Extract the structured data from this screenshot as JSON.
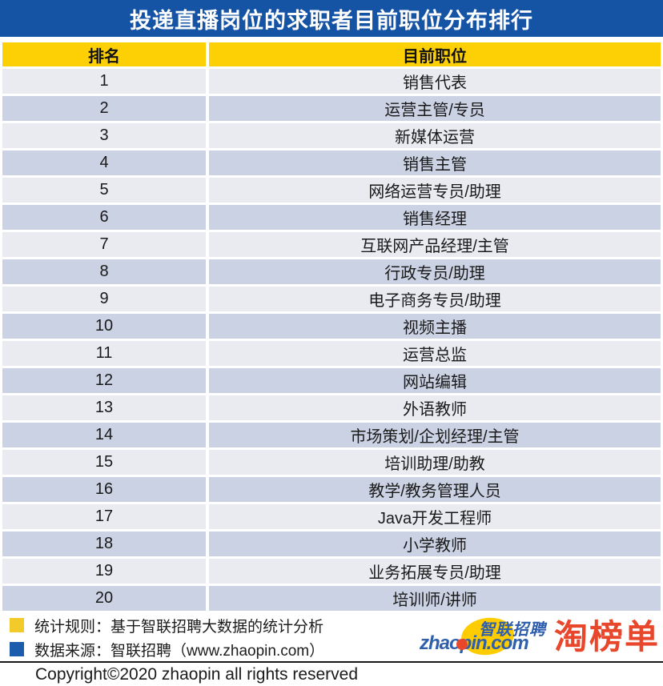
{
  "title": "投递直播岗位的求职者目前职位分布排行",
  "table": {
    "headers": [
      "排名",
      "目前职位"
    ],
    "rows": [
      {
        "rank": "1",
        "position": "销售代表"
      },
      {
        "rank": "2",
        "position": "运营主管/专员"
      },
      {
        "rank": "3",
        "position": "新媒体运营"
      },
      {
        "rank": "4",
        "position": "销售主管"
      },
      {
        "rank": "5",
        "position": "网络运营专员/助理"
      },
      {
        "rank": "6",
        "position": "销售经理"
      },
      {
        "rank": "7",
        "position": "互联网产品经理/主管"
      },
      {
        "rank": "8",
        "position": "行政专员/助理"
      },
      {
        "rank": "9",
        "position": "电子商务专员/助理"
      },
      {
        "rank": "10",
        "position": "视频主播"
      },
      {
        "rank": "11",
        "position": "运营总监"
      },
      {
        "rank": "12",
        "position": "网站编辑"
      },
      {
        "rank": "13",
        "position": "外语教师"
      },
      {
        "rank": "14",
        "position": "市场策划/企划经理/主管"
      },
      {
        "rank": "15",
        "position": "培训助理/助教"
      },
      {
        "rank": "16",
        "position": "教学/教务管理人员"
      },
      {
        "rank": "17",
        "position": "Java开发工程师"
      },
      {
        "rank": "18",
        "position": "小学教师"
      },
      {
        "rank": "19",
        "position": "业务拓展专员/助理"
      },
      {
        "rank": "20",
        "position": "培训师/讲师"
      }
    ]
  },
  "legend": {
    "items": [
      {
        "swatch_color": "#F2CA2A",
        "text": "统计规则：基于智联招聘大数据的统计分析"
      },
      {
        "swatch_color": "#1B5CAD",
        "text": "数据来源：智联招聘（www.zhaopin.com）"
      }
    ]
  },
  "logos": {
    "zhaopin_cn": "智联招聘",
    "zhaopin_en": "zhaopin.com",
    "stamp": "淘榜单"
  },
  "copyright": "Copyright©2020 zhaopin all rights reserved",
  "colors": {
    "title_bar_blue": "#1553A5",
    "header_yellow": "#FCD005",
    "row_light": "#E9EBF1",
    "row_dark": "#CBD2E4",
    "legend_yellow": "#F2CA2A",
    "legend_blue": "#1B5CAD",
    "zhaopin_blue": "#2F5FAC",
    "stamp_red": "#E8472C"
  },
  "chart_data": {
    "type": "table",
    "title": "投递直播岗位的求职者目前职位分布排行",
    "columns": [
      "排名",
      "目前职位"
    ],
    "rows": [
      [
        "1",
        "销售代表"
      ],
      [
        "2",
        "运营主管/专员"
      ],
      [
        "3",
        "新媒体运营"
      ],
      [
        "4",
        "销售主管"
      ],
      [
        "5",
        "网络运营专员/助理"
      ],
      [
        "6",
        "销售经理"
      ],
      [
        "7",
        "互联网产品经理/主管"
      ],
      [
        "8",
        "行政专员/助理"
      ],
      [
        "9",
        "电子商务专员/助理"
      ],
      [
        "10",
        "视频主播"
      ],
      [
        "11",
        "运营总监"
      ],
      [
        "12",
        "网站编辑"
      ],
      [
        "13",
        "外语教师"
      ],
      [
        "14",
        "市场策划/企划经理/主管"
      ],
      [
        "15",
        "培训助理/助教"
      ],
      [
        "16",
        "教学/教务管理人员"
      ],
      [
        "17",
        "Java开发工程师"
      ],
      [
        "18",
        "小学教师"
      ],
      [
        "19",
        "业务拓展专员/助理"
      ],
      [
        "20",
        "培训师/讲师"
      ]
    ],
    "source": "智联招聘 (www.zhaopin.com)"
  }
}
